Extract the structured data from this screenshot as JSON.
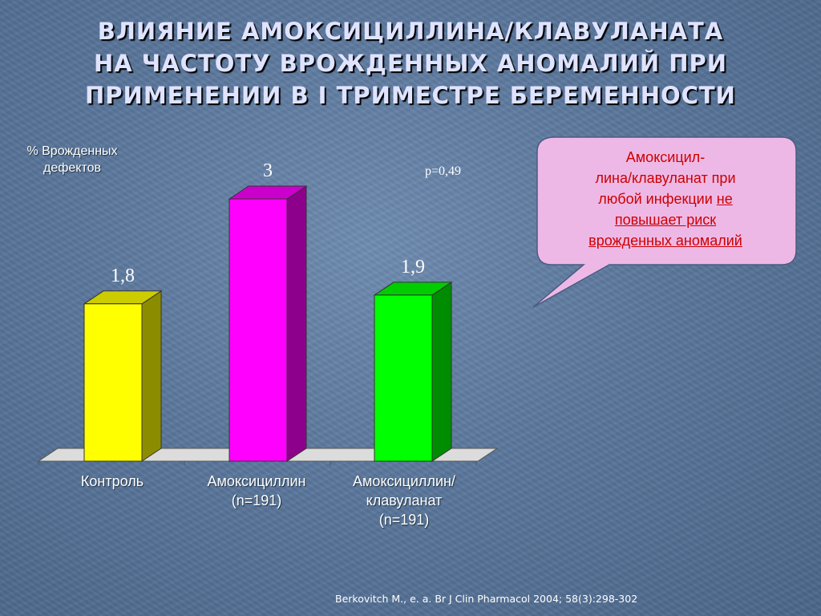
{
  "title": {
    "line1": "ВЛИЯНИЕ АМОКСИЦИЛЛИНА/КЛАВУЛАНАТА",
    "line2": "НА ЧАСТОТУ ВРОЖДЕННЫХ АНОМАЛИЙ ПРИ",
    "line3": "ПРИМЕНЕНИИ В I ТРИМЕСТРЕ БЕРЕМЕННОСТИ"
  },
  "ylabel": {
    "line1": "% Врожденных",
    "line2": "дефектов"
  },
  "p_value": "p=0,49",
  "callout": {
    "line1": "Амоксицил-",
    "line2": "лина/клавуланат при",
    "line3_prefix": "любой инфекции ",
    "line3_underlined": "не",
    "line4": "повышает риск",
    "line5": "врожденных аномалий"
  },
  "citation": "Berkovitch M., e. a. Br J Clin Pharmacol 2004; 58(3):298-302",
  "colors": {
    "control": "#ffff00",
    "amoxicillin": "#ff00ff",
    "amox_clav": "#00ff00",
    "title_text": "#dfe3ff",
    "callout_bg": "#eeb8e6",
    "callout_text": "#cc0000"
  },
  "chart_data": {
    "type": "bar",
    "title": "ВЛИЯНИЕ АМОКСИЦИЛЛИНА/КЛАВУЛАНАТА НА ЧАСТОТУ ВРОЖДЕННЫХ АНОМАЛИЙ ПРИ ПРИМЕНЕНИИ В I ТРИМЕСТРЕ БЕРЕМЕННОСТИ",
    "ylabel": "% Врожденных дефектов",
    "xlabel": "",
    "categories": [
      [
        "Контроль"
      ],
      [
        "Амоксициллин",
        "(n=191)"
      ],
      [
        "Амоксициллин/",
        "клавуланат",
        "(n=191)"
      ]
    ],
    "values": [
      1.8,
      3,
      1.9
    ],
    "value_labels": [
      "1,8",
      "3",
      "1,9"
    ],
    "ylim": [
      0,
      3.3
    ],
    "grid": false,
    "legend": "none",
    "style": "3d"
  }
}
